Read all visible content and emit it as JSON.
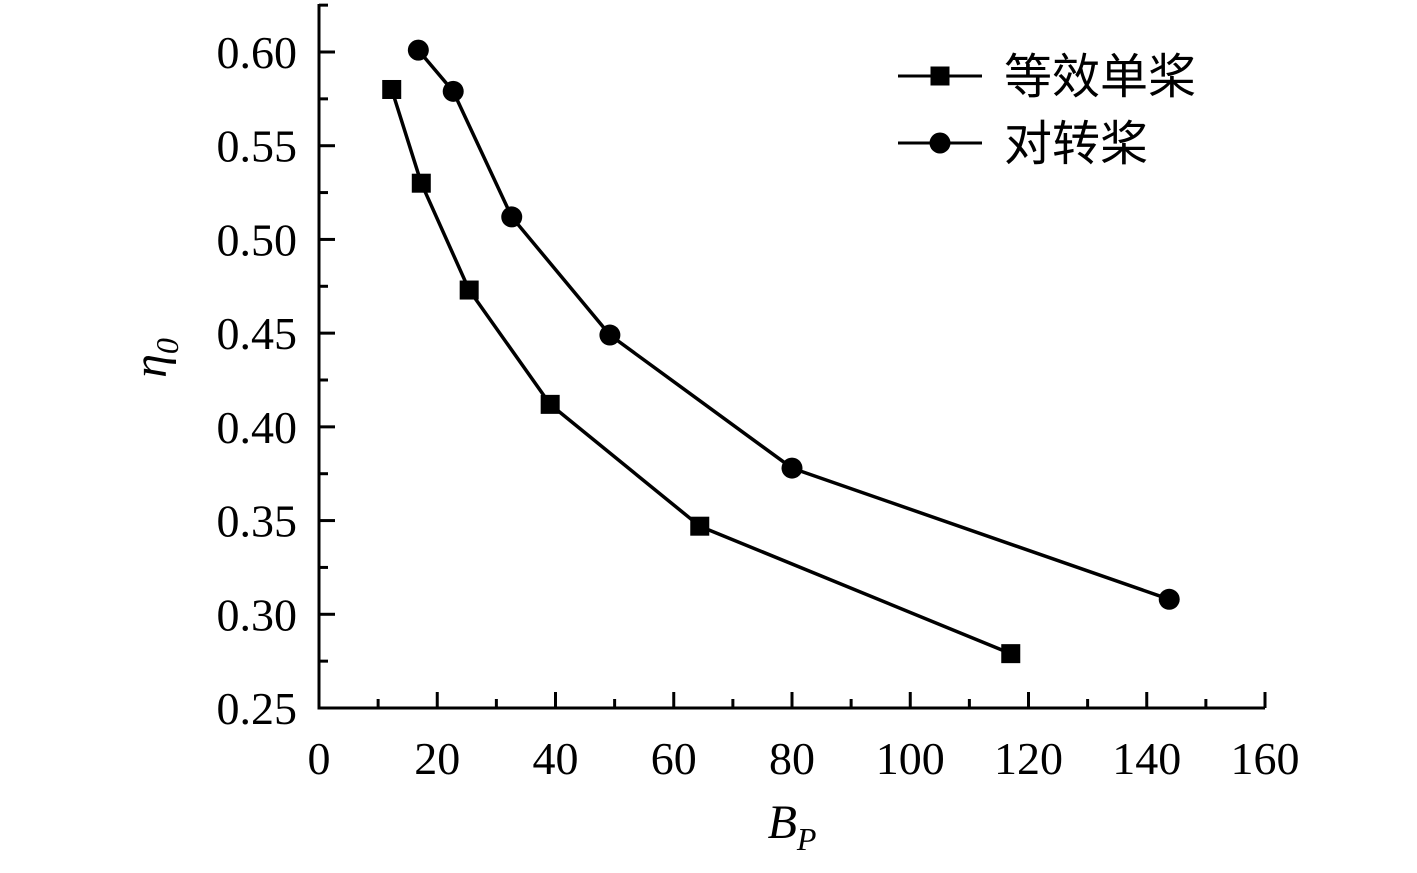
{
  "chart_data": {
    "type": "line",
    "xlabel": "B",
    "xlabel_sub": "P",
    "ylabel": "η",
    "ylabel_sub": "0",
    "xlim": [
      0,
      160
    ],
    "ylim": [
      0.25,
      0.62
    ],
    "xticks": [
      0,
      20,
      40,
      60,
      80,
      100,
      120,
      140,
      160
    ],
    "xtick_labels": [
      "0",
      "20",
      "40",
      "60",
      "80",
      "100",
      "120",
      "140",
      "160"
    ],
    "yticks": [
      0.25,
      0.3,
      0.35,
      0.4,
      0.45,
      0.5,
      0.55,
      0.6
    ],
    "ytick_labels": [
      "0.25",
      "0.30",
      "0.35",
      "0.40",
      "0.45",
      "0.50",
      "0.55",
      "0.60"
    ],
    "grid": false,
    "legend_position": "top-right",
    "series": [
      {
        "name": "等效单桨",
        "marker": "square",
        "color": "#000000",
        "x": [
          12.3,
          17.3,
          25.4,
          39.1,
          64.4,
          117.0
        ],
        "y": [
          0.58,
          0.53,
          0.473,
          0.412,
          0.347,
          0.279
        ]
      },
      {
        "name": "对转桨",
        "marker": "circle",
        "color": "#000000",
        "x": [
          16.8,
          22.7,
          32.6,
          49.2,
          80.0,
          143.8
        ],
        "y": [
          0.601,
          0.579,
          0.512,
          0.449,
          0.378,
          0.308
        ]
      }
    ]
  }
}
